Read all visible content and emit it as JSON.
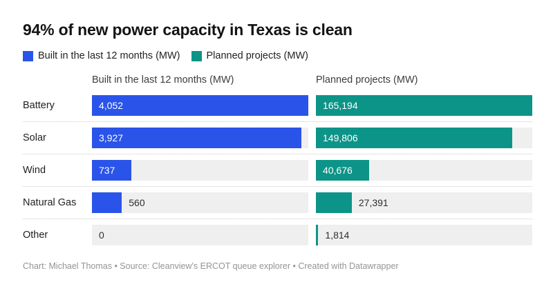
{
  "header": {
    "title": "94% of new power capacity in Texas is clean"
  },
  "legend": [
    {
      "label": "Built in the last 12 months (MW)",
      "color": "#2a54e9"
    },
    {
      "label": "Planned projects (MW)",
      "color": "#0d9488"
    }
  ],
  "chart_data": {
    "type": "bar",
    "orientation": "horizontal",
    "title": "94% of new power capacity in Texas is clean",
    "categories": [
      "Battery",
      "Solar",
      "Wind",
      "Natural Gas",
      "Other"
    ],
    "series": [
      {
        "name": "Built in the last 12 months (MW)",
        "color": "#2a54e9",
        "axis_max": 4052,
        "values": [
          4052,
          3927,
          737,
          560,
          0
        ],
        "labels": [
          "4,052",
          "3,927",
          "737",
          "560",
          "0"
        ]
      },
      {
        "name": "Planned projects (MW)",
        "color": "#0d9488",
        "axis_max": 165194,
        "values": [
          165194,
          149806,
          40676,
          27391,
          1814
        ],
        "labels": [
          "165,194",
          "149,806",
          "40,676",
          "27,391",
          "1,814"
        ]
      }
    ],
    "track_color": "#efefef",
    "legend_position": "top",
    "grid": false,
    "note": "each column scaled independently to its own max"
  },
  "footer": {
    "text": "Chart: Michael Thomas • Source: Cleanview's ERCOT queue explorer • Created with Datawrapper"
  }
}
